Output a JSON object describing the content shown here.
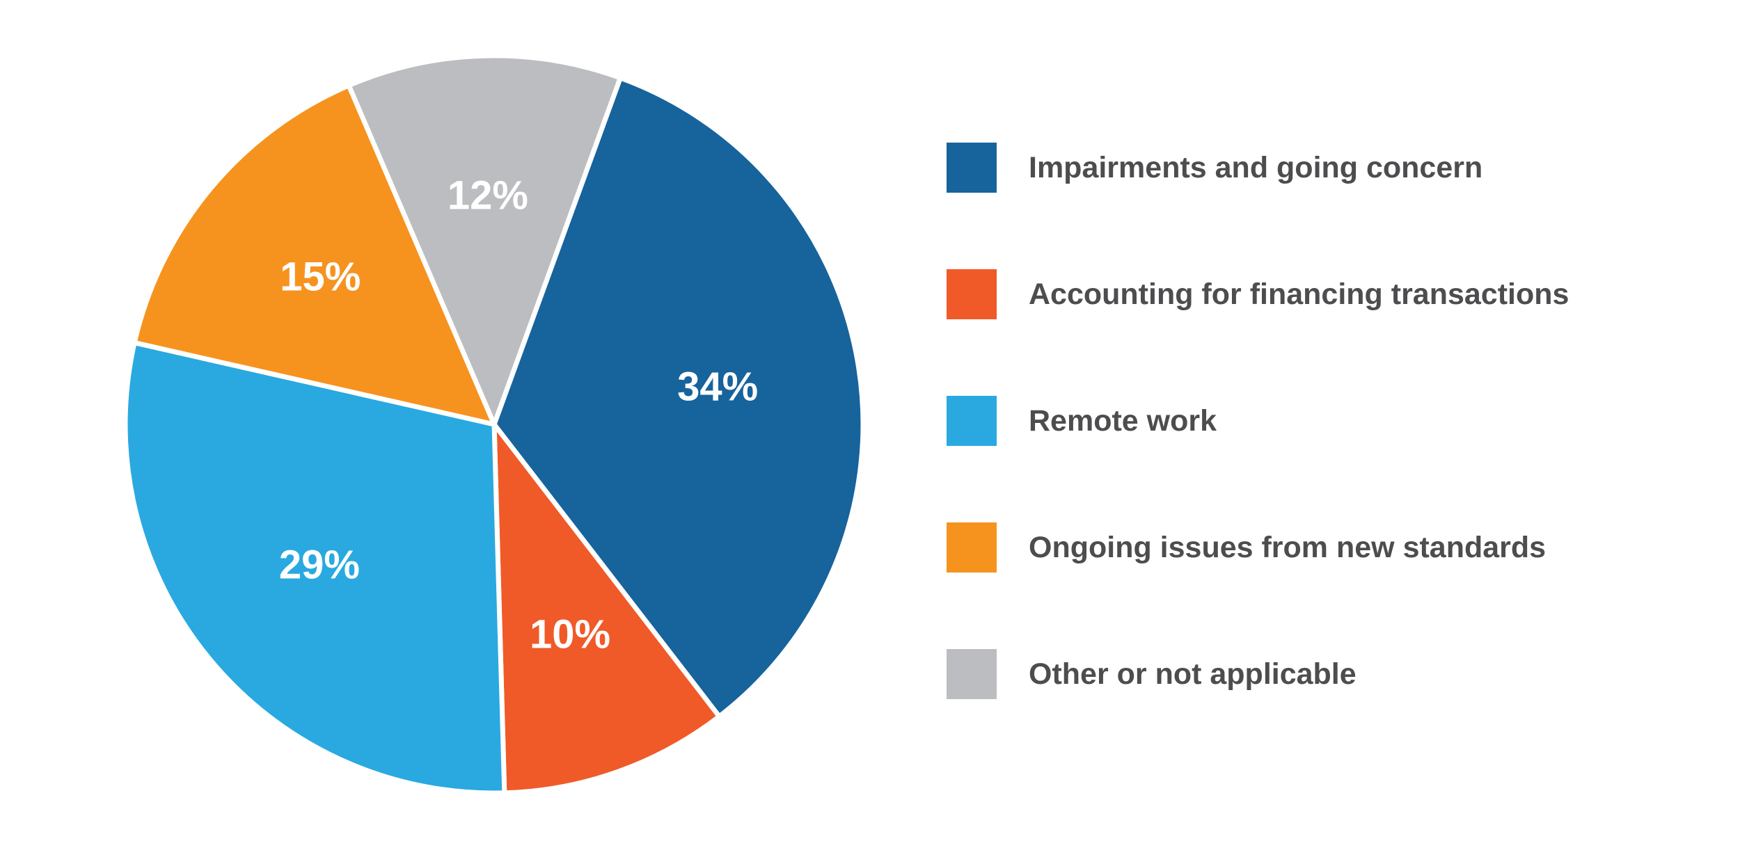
{
  "chart_data": {
    "type": "pie",
    "title": "",
    "categories": [
      "Impairments and going concern",
      "Accounting for financing transactions",
      "Remote work",
      "Ongoing issues from new standards",
      "Other or not applicable"
    ],
    "values": [
      34,
      10,
      29,
      15,
      12
    ],
    "value_labels": [
      "34%",
      "10%",
      "29%",
      "15%",
      "12%"
    ],
    "colors": [
      "#17639c",
      "#f05a28",
      "#29a9e0",
      "#f6931f",
      "#bcbdc0"
    ],
    "legend_position": "right",
    "start_angle_deg": 20,
    "direction": "clockwise"
  }
}
